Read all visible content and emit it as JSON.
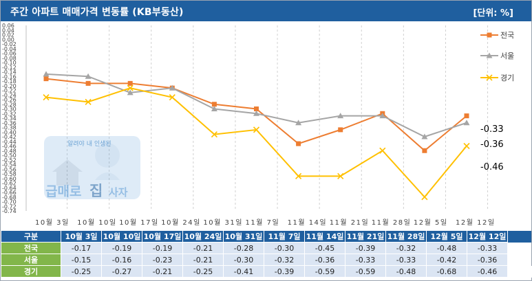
{
  "title": "주간 아파트 매매가격 변동률 (KB부동산)",
  "unit": "[단위: %]",
  "watermark": {
    "line1": "알려야 내 인생된",
    "text_a": "급매로",
    "text_b": "집",
    "text_c": "사자"
  },
  "table": {
    "corner": "구분",
    "columns": [
      "10월 3일",
      "10월 10일",
      "10월 17일",
      "10월 24일",
      "10월 31일",
      "11월 7일",
      "11월 14일",
      "11월 21일",
      "11월 28일",
      "12월 5일",
      "12월 12일"
    ]
  },
  "chart_data": {
    "type": "line",
    "x": [
      "10월 3일",
      "10월 10일",
      "10월 17일",
      "10월 24일",
      "10월 31일",
      "11월 7일",
      "11월 14일",
      "11월 21일",
      "11월 28일",
      "12월 5일",
      "12월 12일"
    ],
    "ylim": [
      -0.74,
      0.06
    ],
    "ytick_step": 0.02,
    "grid": {
      "vertical": true,
      "horizontal": false,
      "style": "dashed"
    },
    "legend": "right",
    "series": [
      {
        "name": "전국",
        "values": [
          -0.17,
          -0.19,
          -0.19,
          -0.21,
          -0.28,
          -0.3,
          -0.45,
          -0.39,
          -0.32,
          -0.48,
          -0.33
        ],
        "color": "#ed7d31",
        "marker": "square",
        "end_label": "-0.33"
      },
      {
        "name": "서울",
        "values": [
          -0.15,
          -0.16,
          -0.23,
          -0.21,
          -0.3,
          -0.32,
          -0.36,
          -0.33,
          -0.33,
          -0.42,
          -0.36
        ],
        "color": "#a5a5a5",
        "marker": "triangle",
        "end_label": "-0.36"
      },
      {
        "name": "경기",
        "values": [
          -0.25,
          -0.27,
          -0.21,
          -0.25,
          -0.41,
          -0.39,
          -0.59,
          -0.59,
          -0.48,
          -0.68,
          -0.46
        ],
        "color": "#ffc000",
        "marker": "x",
        "end_label": "-0.46"
      }
    ]
  }
}
